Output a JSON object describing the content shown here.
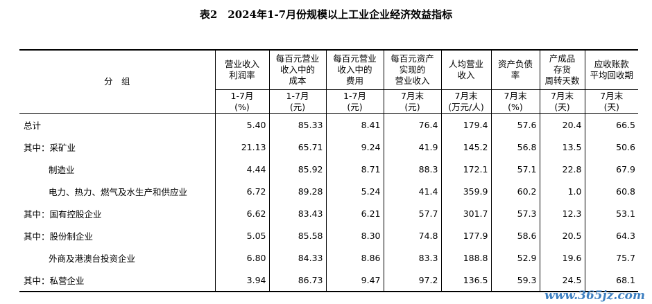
{
  "header": {
    "title": "表2　2024年1-7月份规模以上工业企业经济效益指标"
  },
  "table": {
    "group_header": "分　组",
    "columns": [
      {
        "title": [
          "营业收入",
          "利润率"
        ],
        "period": "1-7月",
        "unit": "(%)"
      },
      {
        "title": [
          "每百元营业",
          "收入中的",
          "成本"
        ],
        "period": "1-7月",
        "unit": "(元)"
      },
      {
        "title": [
          "每百元营业",
          "收入中的",
          "费用"
        ],
        "period": "1-7月",
        "unit": "(元)"
      },
      {
        "title": [
          "每百元资产",
          "实现的",
          "营业收入"
        ],
        "period": "7月末",
        "unit": "(元)"
      },
      {
        "title": [
          "人均营业",
          "收入"
        ],
        "period": "7月末",
        "unit": "(万元/人)"
      },
      {
        "title": [
          "资产负债",
          "率"
        ],
        "period": "7月末",
        "unit": "(%)"
      },
      {
        "title": [
          "产成品",
          "存货",
          "周转天数"
        ],
        "period": "7月末",
        "unit": "(天)"
      },
      {
        "title": [
          "应收账款",
          "平均回收期"
        ],
        "period": "7月末",
        "unit": "(天)"
      }
    ],
    "rows": [
      {
        "label": "总计",
        "values": [
          "5.40",
          "85.33",
          "8.41",
          "76.4",
          "179.4",
          "57.6",
          "20.4",
          "66.5"
        ]
      },
      {
        "label": "其中：采矿业",
        "values": [
          "21.13",
          "65.71",
          "9.24",
          "41.9",
          "145.2",
          "56.8",
          "13.5",
          "50.6"
        ]
      },
      {
        "label": "制造业",
        "values": [
          "4.44",
          "85.92",
          "8.71",
          "88.3",
          "172.1",
          "57.1",
          "22.8",
          "67.9"
        ]
      },
      {
        "label": "电力、热力、燃气及水生产和供应业",
        "values": [
          "6.72",
          "89.28",
          "5.24",
          "41.4",
          "359.9",
          "60.2",
          "1.0",
          "60.8"
        ]
      },
      {
        "label": "其中：国有控股企业",
        "values": [
          "6.62",
          "83.43",
          "6.21",
          "57.7",
          "301.7",
          "57.3",
          "12.3",
          "53.1"
        ]
      },
      {
        "label": "其中：股份制企业",
        "values": [
          "5.05",
          "85.58",
          "8.30",
          "74.8",
          "177.9",
          "58.6",
          "20.5",
          "64.3"
        ]
      },
      {
        "label": "外商及港澳台投资企业",
        "values": [
          "6.80",
          "84.33",
          "8.86",
          "83.3",
          "188.8",
          "52.9",
          "19.6",
          "75.7"
        ]
      },
      {
        "label": "其中：私营企业",
        "values": [
          "3.94",
          "86.73",
          "9.47",
          "97.2",
          "136.5",
          "59.3",
          "24.5",
          "68.1"
        ]
      }
    ]
  },
  "watermark": "www.365jz.com"
}
